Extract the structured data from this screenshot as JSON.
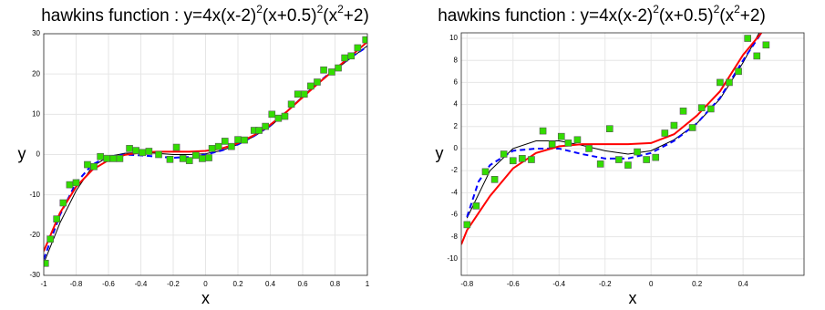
{
  "chart_data": [
    {
      "type": "line",
      "title": [
        "hawkins function : y=4x(x-2)",
        "2",
        "(x+0.5)",
        "2",
        "(x",
        "2",
        "+2)"
      ],
      "x_label": "x",
      "y_label": "y",
      "xlim": [
        -1,
        1
      ],
      "xticks": [
        -1,
        -0.8,
        -0.6,
        -0.4,
        -0.2,
        0,
        0.2,
        0.4,
        0.6,
        0.8,
        1
      ],
      "ylim": [
        -30,
        30
      ],
      "yticks": [
        -30,
        -20,
        -10,
        0,
        10,
        20,
        30
      ],
      "grid": true,
      "series": [
        {
          "kind": "line",
          "color": "#000000",
          "width": 1,
          "dash": false,
          "x": [
            -1,
            -0.9,
            -0.8,
            -0.7,
            -0.6,
            -0.5,
            -0.4,
            -0.3,
            -0.2,
            -0.1,
            0,
            0.1,
            0.2,
            0.3,
            0.4,
            0.5,
            0.6,
            0.7,
            0.8,
            0.9,
            1
          ],
          "values": [
            -27,
            -17,
            -9,
            -3,
            -0.5,
            0.3,
            0.5,
            0.3,
            0,
            0,
            0.2,
            1,
            2.5,
            4.5,
            7,
            10.5,
            14.5,
            18,
            21,
            24,
            27
          ]
        },
        {
          "kind": "line",
          "color": "#0000ff",
          "width": 2,
          "dash": true,
          "x": [
            -1,
            -0.9,
            -0.8,
            -0.7,
            -0.6,
            -0.5,
            -0.4,
            -0.3,
            -0.2,
            -0.1,
            0,
            0.1,
            0.2,
            0.3,
            0.4,
            0.5,
            0.6,
            0.7,
            0.8,
            0.9,
            1
          ],
          "values": [
            -26,
            -15,
            -7,
            -2.5,
            -0.5,
            0,
            -0.2,
            -0.5,
            -0.8,
            -0.6,
            0,
            1,
            2.5,
            4.6,
            7.2,
            10.6,
            14.3,
            18,
            21.3,
            24.2,
            26.8
          ]
        },
        {
          "kind": "line",
          "color": "#ff0000",
          "width": 2,
          "dash": false,
          "x": [
            -1,
            -0.9,
            -0.8,
            -0.7,
            -0.6,
            -0.5,
            -0.4,
            -0.3,
            -0.2,
            -0.1,
            0,
            0.1,
            0.2,
            0.3,
            0.4,
            0.5,
            0.6,
            0.7,
            0.8,
            0.9,
            1
          ],
          "values": [
            -24,
            -14.5,
            -8,
            -3.8,
            -1.4,
            -0.1,
            0.5,
            0.7,
            0.7,
            0.7,
            0.9,
            1.5,
            2.8,
            4.8,
            7.4,
            10.6,
            14.2,
            17.8,
            21.2,
            24.5,
            28
          ]
        },
        {
          "kind": "scatter",
          "color": "#33dd00",
          "x": [
            -0.99,
            -0.96,
            -0.92,
            -0.88,
            -0.84,
            -0.8,
            -0.73,
            -0.69,
            -0.65,
            -0.61,
            -0.57,
            -0.53,
            -0.47,
            -0.43,
            -0.39,
            -0.35,
            -0.29,
            -0.22,
            -0.18,
            -0.14,
            -0.1,
            -0.06,
            -0.02,
            0.02,
            0.04,
            0.08,
            0.12,
            0.16,
            0.2,
            0.24,
            0.3,
            0.33,
            0.37,
            0.41,
            0.45,
            0.49,
            0.53,
            0.57,
            0.61,
            0.65,
            0.69,
            0.73,
            0.78,
            0.82,
            0.86,
            0.9,
            0.94,
            0.99
          ],
          "values": [
            -27,
            -21,
            -16,
            -12,
            -7.5,
            -7,
            -2.5,
            -3,
            -0.5,
            -1,
            -1,
            -1,
            1.5,
            1,
            0.5,
            0.8,
            0,
            -1.2,
            1.8,
            -1,
            -1.5,
            -0.2,
            -1,
            -0.8,
            1.5,
            2,
            3.3,
            2,
            3.7,
            3.6,
            6,
            6,
            7,
            10,
            9,
            9.5,
            12.5,
            15,
            15,
            17,
            18,
            21,
            20.5,
            21.5,
            24,
            24.5,
            26.5,
            28.5
          ]
        }
      ]
    },
    {
      "type": "line",
      "title": [
        "hawkins function : y=4x(x-2)",
        "2",
        "(x+0.5)",
        "2",
        "(x",
        "2",
        "+2)"
      ],
      "x_label": "x",
      "y_label": "y",
      "xlim": [
        -0.825,
        0.665
      ],
      "xticks": [
        -0.8,
        -0.6,
        -0.4,
        -0.2,
        0,
        0.2,
        0.4
      ],
      "ylim": [
        -11.5,
        10.5
      ],
      "yticks": [
        -10,
        -8,
        -6,
        -4,
        -2,
        0,
        2,
        4,
        6,
        8,
        10
      ],
      "grid": true,
      "series": [
        {
          "kind": "line",
          "color": "#000000",
          "width": 1,
          "dash": false,
          "x": [
            -0.8,
            -0.7,
            -0.6,
            -0.5,
            -0.4,
            -0.3,
            -0.2,
            -0.1,
            0,
            0.1,
            0.2,
            0.3,
            0.4,
            0.47
          ],
          "values": [
            -6.3,
            -2,
            0,
            0.7,
            0.7,
            0.3,
            -0.2,
            -0.5,
            -0.2,
            0.8,
            2.3,
            4.5,
            7.8,
            10.5
          ]
        },
        {
          "kind": "line",
          "color": "#0000ff",
          "width": 2,
          "dash": true,
          "x": [
            -0.8,
            -0.75,
            -0.7,
            -0.6,
            -0.5,
            -0.4,
            -0.3,
            -0.2,
            -0.1,
            0,
            0.1,
            0.2,
            0.3,
            0.4,
            0.48
          ],
          "values": [
            -6.2,
            -3,
            -1.5,
            -0.2,
            0,
            0,
            -0.5,
            -0.9,
            -0.9,
            -0.4,
            0.7,
            2.3,
            4.6,
            8,
            10.5
          ]
        },
        {
          "kind": "line",
          "color": "#ff0000",
          "width": 2,
          "dash": false,
          "x": [
            -0.825,
            -0.8,
            -0.7,
            -0.6,
            -0.5,
            -0.4,
            -0.3,
            -0.2,
            -0.1,
            0,
            0.1,
            0.2,
            0.3,
            0.4,
            0.48
          ],
          "values": [
            -8.7,
            -7.4,
            -4.3,
            -1.8,
            -0.4,
            0.2,
            0.4,
            0.4,
            0.4,
            0.5,
            1.3,
            3,
            5.2,
            8.5,
            10.5
          ]
        },
        {
          "kind": "scatter",
          "color": "#33dd00",
          "x": [
            -0.8,
            -0.76,
            -0.72,
            -0.68,
            -0.64,
            -0.6,
            -0.56,
            -0.52,
            -0.47,
            -0.43,
            -0.39,
            -0.36,
            -0.32,
            -0.27,
            -0.22,
            -0.18,
            -0.14,
            -0.1,
            -0.06,
            -0.02,
            0.02,
            0.06,
            0.1,
            0.14,
            0.18,
            0.22,
            0.26,
            0.3,
            0.34,
            0.38,
            0.42,
            0.46,
            0.5
          ],
          "values": [
            -6.9,
            -5.2,
            -2.1,
            -2.8,
            -0.5,
            -1.1,
            -0.9,
            -1,
            1.6,
            0.4,
            1.1,
            0.5,
            0.8,
            0,
            -1.4,
            1.8,
            -1,
            -1.5,
            -0.3,
            -1,
            -0.8,
            1.4,
            2.1,
            3.4,
            1.9,
            3.7,
            3.6,
            6,
            6,
            7,
            10,
            8.4,
            9.4
          ]
        }
      ]
    }
  ]
}
